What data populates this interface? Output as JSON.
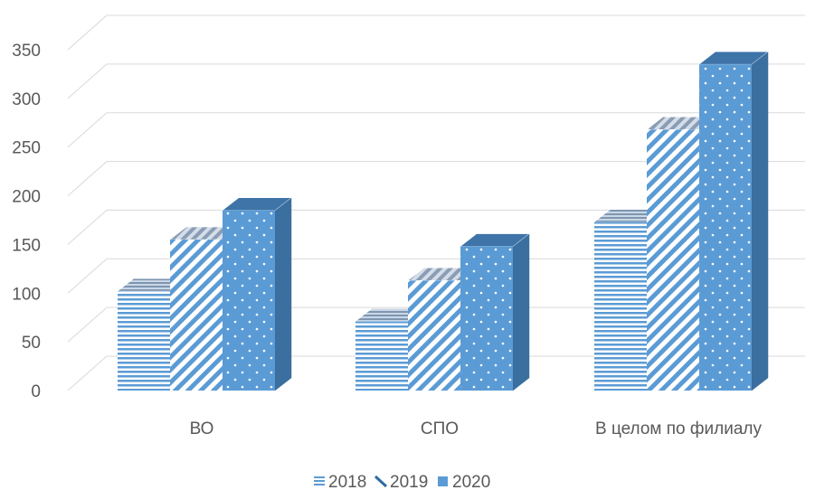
{
  "chart_data": {
    "type": "bar",
    "style": "3d-clustered-column",
    "categories": [
      "ВО",
      "СПО",
      "В целом по филиалу"
    ],
    "series": [
      {
        "name": "2018",
        "values": [
          102,
          71,
          173
        ],
        "pattern": "horizontal-lines",
        "color": "#5B9BD5"
      },
      {
        "name": "2019",
        "values": [
          155,
          113,
          268
        ],
        "pattern": "diagonal-stripes",
        "color": "#5B9BD5"
      },
      {
        "name": "2020",
        "values": [
          185,
          148,
          335
        ],
        "pattern": "dots",
        "color": "#5B9BD5"
      }
    ],
    "ylim": [
      0,
      350
    ],
    "yticks": [
      0,
      50,
      100,
      150,
      200,
      250,
      300,
      350
    ],
    "grid": true,
    "legend": "bottom"
  }
}
